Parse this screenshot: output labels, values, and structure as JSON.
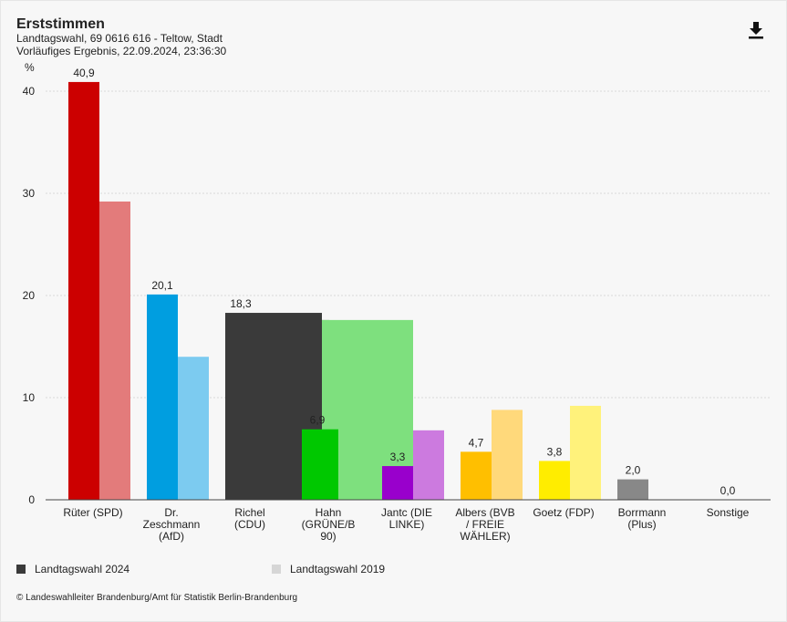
{
  "header": {
    "title": "Erststimmen",
    "subtitle_line1": "Landtagswahl, 69 0616 616 - Teltow, Stadt",
    "subtitle_line2": "Vorläufiges Ergebnis, 22.09.2024, 23:36:30",
    "download_icon": "download-icon"
  },
  "chart_data": {
    "type": "bar",
    "ylabel": "%",
    "ylim": [
      0,
      45
    ],
    "yticks": [
      0,
      10,
      20,
      30,
      40
    ],
    "grid": true,
    "legend_position": "bottom",
    "categories": [
      [
        "Rüter (SPD)"
      ],
      [
        "Dr.",
        "Zeschmann",
        "(AfD)"
      ],
      [
        "Richel",
        "(CDU)"
      ],
      [
        "Hahn",
        "(GRÜNE/B",
        "90)"
      ],
      [
        "Jantc (DIE",
        "LINKE)"
      ],
      [
        "Albers (BVB",
        "/ FREIE",
        "WÄHLER)"
      ],
      [
        "Goetz (FDP)"
      ],
      [
        "Borrmann",
        "(Plus)"
      ],
      [
        "Sonstige"
      ]
    ],
    "series": [
      {
        "name": "Landtagswahl 2024",
        "values": [
          40.9,
          20.1,
          18.3,
          6.9,
          3.3,
          4.7,
          3.8,
          2.0,
          0.0
        ],
        "labels": [
          "40,9",
          "20,1",
          "18,3",
          "6,9",
          "3,3",
          "4,7",
          "3,8",
          "2,0",
          "0,0"
        ],
        "colors": [
          "#cc0000",
          "#009ee0",
          "#3a3a3a",
          "#00c800",
          "#9900cc",
          "#ffbf00",
          "#ffed00",
          "#888888",
          "#aaaaaa"
        ]
      },
      {
        "name": "Landtagswahl 2019",
        "values": [
          29.2,
          14.0,
          17.6,
          17.6,
          6.8,
          8.8,
          9.2,
          0,
          0
        ],
        "colors": [
          "#e37b7b",
          "#7ccbf0",
          "#888888",
          "#7ee07e",
          "#cc7adf",
          "#ffd97b",
          "#fff27b",
          "#bbbbbb",
          "#cccccc"
        ]
      }
    ]
  },
  "legend": {
    "item_2024": "Landtagswahl 2024",
    "item_2019": "Landtagswahl 2019",
    "color_2024": "#3a3a3a",
    "color_2019": "#d6d6d6"
  },
  "footer": {
    "source": "© Landeswahlleiter Brandenburg/Amt für Statistik Berlin-Brandenburg"
  }
}
